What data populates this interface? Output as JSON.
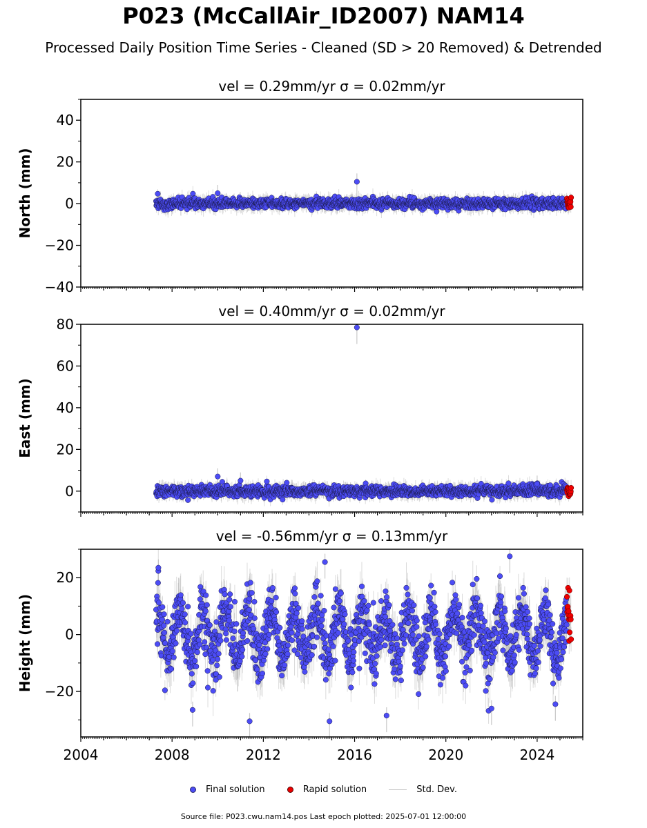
{
  "title": "P023 (McCallAir_ID2007) NAM14",
  "subtitle": "Processed Daily Position Time Series - Cleaned (SD > 20 Removed) & Detrended",
  "legend": {
    "final": "Final solution",
    "rapid": "Rapid solution",
    "std": "Std. Dev."
  },
  "footer": "Source file: P023.cwu.nam14.pos  Last epoch plotted: 2025-07-01 12:00:00",
  "colors": {
    "final": "#4c4cf5",
    "rapid": "#ee0000",
    "std": "#b0b0b0"
  },
  "chart_data": [
    {
      "type": "scatter",
      "component": "north",
      "title": "vel = 0.29mm/yr   σ = 0.02mm/yr",
      "ylabel": "North (mm)",
      "xlim": [
        2004,
        2026
      ],
      "ylim": [
        -40,
        50
      ],
      "yticks": [
        -40,
        -20,
        0,
        20,
        40
      ],
      "xticks": [],
      "data_start": 2007.3,
      "data_end": 2025.5,
      "rapid_start": 2025.3,
      "scatter_sd": 1.2,
      "std_range": [
        1,
        4
      ],
      "seasonal_amplitude": 0,
      "notable_points": [
        {
          "x": 2016.1,
          "y": 10.5
        },
        {
          "x": 2010.0,
          "y": 5.0
        }
      ]
    },
    {
      "type": "scatter",
      "component": "east",
      "title": "vel = 0.40mm/yr   σ = 0.02mm/yr",
      "ylabel": "East (mm)",
      "xlim": [
        2004,
        2026
      ],
      "ylim": [
        -10,
        80
      ],
      "yticks": [
        0,
        20,
        40,
        60,
        80
      ],
      "xticks": [],
      "data_start": 2007.3,
      "data_end": 2025.5,
      "rapid_start": 2025.3,
      "scatter_sd": 1.3,
      "std_range": [
        1,
        4
      ],
      "seasonal_amplitude": 0,
      "notable_points": [
        {
          "x": 2016.1,
          "y": 78.5
        },
        {
          "x": 2010.0,
          "y": 7.0
        },
        {
          "x": 2011.0,
          "y": 5.0
        },
        {
          "x": 2024.0,
          "y": 3.5
        }
      ]
    },
    {
      "type": "scatter",
      "component": "height",
      "title": "vel = -0.56mm/yr   σ = 0.13mm/yr",
      "ylabel": "Height (mm)",
      "xlim": [
        2004,
        2026
      ],
      "ylim": [
        -36,
        30
      ],
      "yticks": [
        -20,
        0,
        20
      ],
      "xticks": [
        2004,
        2008,
        2012,
        2016,
        2020,
        2024
      ],
      "data_start": 2007.3,
      "data_end": 2025.5,
      "rapid_start": 2025.3,
      "scatter_sd": 5.0,
      "std_range": [
        3,
        9
      ],
      "seasonal_amplitude": 8,
      "notable_points": [
        {
          "x": 2008.9,
          "y": -26.5
        },
        {
          "x": 2011.4,
          "y": -30.5
        },
        {
          "x": 2014.9,
          "y": -30.5
        },
        {
          "x": 2017.4,
          "y": -28.5
        },
        {
          "x": 2022.0,
          "y": -26.0
        },
        {
          "x": 2024.8,
          "y": -24.5
        },
        {
          "x": 2007.4,
          "y": 23.5
        },
        {
          "x": 2014.7,
          "y": 25.5
        },
        {
          "x": 2022.8,
          "y": 27.5
        },
        {
          "x": 2025.4,
          "y": 7.0
        }
      ]
    }
  ]
}
